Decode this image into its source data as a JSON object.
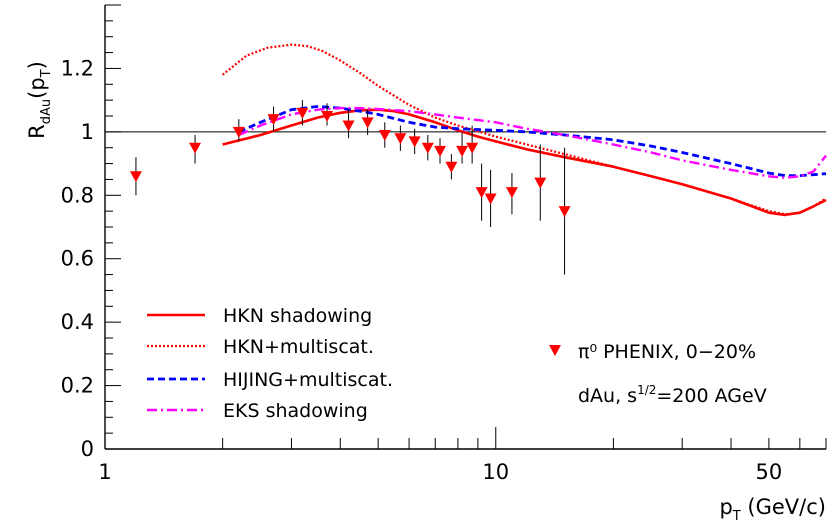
{
  "chart_data": {
    "type": "line",
    "title": "",
    "xlabel": {
      "base": "p",
      "sub": "T",
      "rest": " (GeV/c)"
    },
    "ylabel": {
      "base": "R",
      "sub": "dAu",
      "open": "(p",
      "sub2": "T",
      "close": ")"
    },
    "x_scale": "log",
    "xlim": [
      1,
      70
    ],
    "ylim": [
      0,
      1.4
    ],
    "reference_line": 1,
    "x_ticks": [
      {
        "value": 1,
        "label": "1"
      },
      {
        "value": 10,
        "label": "10"
      },
      {
        "value": 50,
        "label": "50"
      }
    ],
    "y_ticks": [
      {
        "value": 0,
        "label": "0"
      },
      {
        "value": 0.2,
        "label": "0.2"
      },
      {
        "value": 0.4,
        "label": "0.4"
      },
      {
        "value": 0.6,
        "label": "0.6"
      },
      {
        "value": 0.8,
        "label": "0.8"
      },
      {
        "value": 1,
        "label": "1"
      },
      {
        "value": 1.2,
        "label": "1.2"
      }
    ],
    "grid": false,
    "legend_position": "bottom-left",
    "series": [
      {
        "name": "HKN shadowing",
        "style": "solid",
        "color": "#ff0000",
        "x": [
          2,
          2.5,
          3,
          3.5,
          4,
          4.5,
          5,
          5.5,
          6,
          7,
          8,
          9,
          10,
          12,
          15,
          20,
          25,
          30,
          40,
          50,
          55,
          60,
          65,
          70
        ],
        "y": [
          0.96,
          0.99,
          1.02,
          1.045,
          1.06,
          1.068,
          1.07,
          1.065,
          1.055,
          1.03,
          1.005,
          0.985,
          0.97,
          0.945,
          0.92,
          0.89,
          0.86,
          0.835,
          0.79,
          0.745,
          0.738,
          0.745,
          0.765,
          0.785
        ]
      },
      {
        "name": "HKN+multiscat.",
        "style": "dotted",
        "color": "#ff0000",
        "x": [
          2,
          2.3,
          2.6,
          3,
          3.3,
          3.6,
          4,
          4.5,
          5,
          6,
          7,
          8,
          10,
          12,
          15,
          20,
          25,
          30,
          40,
          50,
          55,
          60,
          65,
          70
        ],
        "y": [
          1.18,
          1.24,
          1.265,
          1.275,
          1.27,
          1.255,
          1.225,
          1.185,
          1.145,
          1.085,
          1.045,
          1.02,
          0.985,
          0.96,
          0.93,
          0.89,
          0.86,
          0.835,
          0.79,
          0.75,
          0.74,
          0.745,
          0.765,
          0.79
        ]
      },
      {
        "name": "HIJING+multiscat.",
        "style": "dashed",
        "color": "#0000ff",
        "x": [
          2.2,
          2.5,
          3,
          3.5,
          4,
          4.5,
          5,
          6,
          7,
          8,
          10,
          12,
          15,
          20,
          25,
          30,
          40,
          50,
          55,
          60,
          65,
          70
        ],
        "y": [
          1.0,
          1.03,
          1.07,
          1.08,
          1.075,
          1.065,
          1.055,
          1.03,
          1.015,
          1.01,
          1.005,
          1.0,
          0.99,
          0.975,
          0.955,
          0.935,
          0.9,
          0.87,
          0.862,
          0.862,
          0.865,
          0.868
        ]
      },
      {
        "name": "EKS shadowing",
        "style": "dashdot",
        "color": "#ff00ff",
        "x": [
          2.2,
          2.5,
          3,
          3.5,
          4,
          4.5,
          5,
          6,
          7,
          8,
          10,
          12,
          15,
          20,
          25,
          30,
          40,
          50,
          55,
          60,
          65,
          70
        ],
        "y": [
          0.99,
          1.02,
          1.055,
          1.07,
          1.075,
          1.075,
          1.072,
          1.065,
          1.055,
          1.045,
          1.03,
          1.01,
          0.99,
          0.96,
          0.935,
          0.91,
          0.88,
          0.86,
          0.855,
          0.86,
          0.875,
          0.925
        ]
      }
    ],
    "points": {
      "name": "π⁰ PHENIX, 0−20%",
      "color": "#ff0000",
      "marker": "triangle-down",
      "data": [
        {
          "x": 1.2,
          "y": 0.86,
          "lo": 0.8,
          "hi": 0.92
        },
        {
          "x": 1.7,
          "y": 0.95,
          "lo": 0.9,
          "hi": 0.99
        },
        {
          "x": 2.2,
          "y": 1.0,
          "lo": 0.97,
          "hi": 1.04
        },
        {
          "x": 2.7,
          "y": 1.04,
          "lo": 1.0,
          "hi": 1.08
        },
        {
          "x": 3.2,
          "y": 1.06,
          "lo": 1.02,
          "hi": 1.1
        },
        {
          "x": 3.7,
          "y": 1.05,
          "lo": 1.02,
          "hi": 1.09
        },
        {
          "x": 4.2,
          "y": 1.02,
          "lo": 0.98,
          "hi": 1.07
        },
        {
          "x": 4.7,
          "y": 1.03,
          "lo": 0.99,
          "hi": 1.07
        },
        {
          "x": 5.2,
          "y": 0.99,
          "lo": 0.95,
          "hi": 1.03
        },
        {
          "x": 5.7,
          "y": 0.98,
          "lo": 0.94,
          "hi": 1.02
        },
        {
          "x": 6.2,
          "y": 0.97,
          "lo": 0.93,
          "hi": 1.01
        },
        {
          "x": 6.7,
          "y": 0.95,
          "lo": 0.91,
          "hi": 0.99
        },
        {
          "x": 7.2,
          "y": 0.94,
          "lo": 0.9,
          "hi": 0.98
        },
        {
          "x": 7.7,
          "y": 0.89,
          "lo": 0.85,
          "hi": 0.93
        },
        {
          "x": 8.2,
          "y": 0.94,
          "lo": 0.9,
          "hi": 1.0
        },
        {
          "x": 8.7,
          "y": 0.95,
          "lo": 0.9,
          "hi": 1.02
        },
        {
          "x": 9.2,
          "y": 0.81,
          "lo": 0.72,
          "hi": 0.9
        },
        {
          "x": 9.7,
          "y": 0.79,
          "lo": 0.7,
          "hi": 0.88
        },
        {
          "x": 11,
          "y": 0.81,
          "lo": 0.74,
          "hi": 0.87
        },
        {
          "x": 13,
          "y": 0.84,
          "lo": 0.72,
          "hi": 0.96
        },
        {
          "x": 15,
          "y": 0.75,
          "lo": 0.55,
          "hi": 0.95
        }
      ]
    },
    "annotation": {
      "prefix": "dAu, s",
      "sup": "1/2",
      "suffix": "=200 AGeV"
    }
  }
}
